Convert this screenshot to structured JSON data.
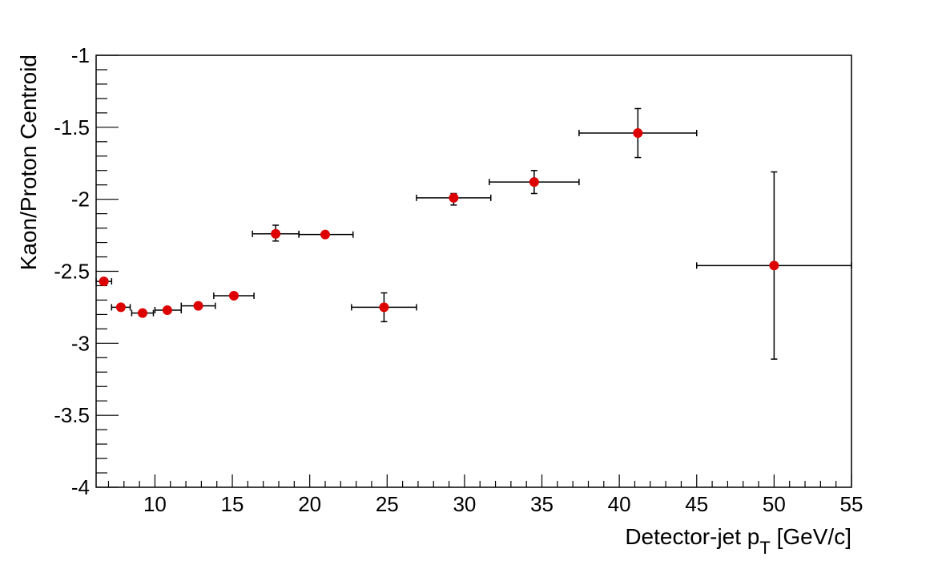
{
  "chart_data": {
    "type": "scatter",
    "title": "",
    "xlabel_main": "Detector-jet p",
    "xlabel_sub": "T",
    "xlabel_unit": " [GeV/c]",
    "ylabel": "Kaon/Proton Centroid",
    "xlim": [
      6.2,
      55
    ],
    "ylim": [
      -4,
      -1
    ],
    "x_ticks": [
      10,
      15,
      20,
      25,
      30,
      35,
      40,
      45,
      50,
      55
    ],
    "x_tick_labels": [
      "10",
      "15",
      "20",
      "25",
      "30",
      "35",
      "40",
      "45",
      "50",
      "55"
    ],
    "y_ticks": [
      -4,
      -3.5,
      -3,
      -2.5,
      -2,
      -1.5,
      -1
    ],
    "y_tick_labels": [
      "-4",
      "-3.5",
      "-3",
      "-2.5",
      "-2",
      "-1.5",
      "-1"
    ],
    "grid": false,
    "marker_color": "#dd0000",
    "points": [
      {
        "x": 6.7,
        "y": -2.57,
        "xerr_lo": 0.5,
        "xerr_hi": 0.5,
        "yerr_lo": 0.01,
        "yerr_hi": 0.01
      },
      {
        "x": 7.8,
        "y": -2.75,
        "xerr_lo": 0.6,
        "xerr_hi": 0.6,
        "yerr_lo": 0.01,
        "yerr_hi": 0.01
      },
      {
        "x": 9.2,
        "y": -2.79,
        "xerr_lo": 0.7,
        "xerr_hi": 0.7,
        "yerr_lo": 0.01,
        "yerr_hi": 0.01
      },
      {
        "x": 10.8,
        "y": -2.77,
        "xerr_lo": 0.8,
        "xerr_hi": 0.9,
        "yerr_lo": 0.01,
        "yerr_hi": 0.01
      },
      {
        "x": 12.8,
        "y": -2.74,
        "xerr_lo": 1.1,
        "xerr_hi": 1.1,
        "yerr_lo": 0.01,
        "yerr_hi": 0.01
      },
      {
        "x": 15.1,
        "y": -2.67,
        "xerr_lo": 1.3,
        "xerr_hi": 1.3,
        "yerr_lo": 0.01,
        "yerr_hi": 0.01
      },
      {
        "x": 17.8,
        "y": -2.24,
        "xerr_lo": 1.5,
        "xerr_hi": 1.5,
        "yerr_lo": 0.05,
        "yerr_hi": 0.06
      },
      {
        "x": 21.0,
        "y": -2.245,
        "xerr_lo": 1.7,
        "xerr_hi": 1.8,
        "yerr_lo": 0.01,
        "yerr_hi": 0.01
      },
      {
        "x": 24.8,
        "y": -2.75,
        "xerr_lo": 2.1,
        "xerr_hi": 2.1,
        "yerr_lo": 0.1,
        "yerr_hi": 0.1
      },
      {
        "x": 29.3,
        "y": -1.99,
        "xerr_lo": 2.4,
        "xerr_hi": 2.4,
        "yerr_lo": 0.05,
        "yerr_hi": 0.03
      },
      {
        "x": 34.5,
        "y": -1.88,
        "xerr_lo": 2.9,
        "xerr_hi": 2.9,
        "yerr_lo": 0.08,
        "yerr_hi": 0.08
      },
      {
        "x": 41.2,
        "y": -1.54,
        "xerr_lo": 3.8,
        "xerr_hi": 3.8,
        "yerr_lo": 0.17,
        "yerr_hi": 0.17
      },
      {
        "x": 50.0,
        "y": -2.46,
        "xerr_lo": 5.0,
        "xerr_hi": 5.0,
        "yerr_lo": 0.65,
        "yerr_hi": 0.65
      }
    ]
  }
}
